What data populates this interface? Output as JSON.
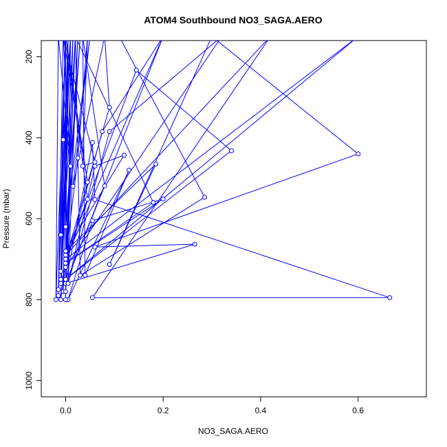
{
  "chart_data": {
    "type": "line",
    "title": "ATOM4 Southbound NO3_SAGA.AERO",
    "xlabel": "NO3_SAGA.AERO",
    "ylabel": "Pressure (mbar)",
    "xlim": [
      -0.05,
      0.74
    ],
    "ylim": [
      160,
      1040
    ],
    "y_reversed": true,
    "x_ticks": [
      0.0,
      0.2,
      0.4,
      0.6
    ],
    "x_tick_labels": [
      "0.0",
      "0.2",
      "0.4",
      "0.6"
    ],
    "y_ticks": [
      200,
      400,
      600,
      800,
      1000
    ],
    "y_tick_labels": [
      "200",
      "400",
      "600",
      "800",
      "1000"
    ],
    "marker": "open-circle",
    "series": [
      {
        "color": "#0000ff",
        "points": [
          {
            "x": 0.01,
            "y": 150
          },
          {
            "x": -0.01,
            "y": 760
          },
          {
            "x": 0.0,
            "y": 720
          },
          {
            "x": 0.02,
            "y": 150
          },
          {
            "x": 0.0,
            "y": 700
          },
          {
            "x": 0.005,
            "y": 150
          },
          {
            "x": -0.005,
            "y": 780
          },
          {
            "x": 0.03,
            "y": 150
          },
          {
            "x": 0.0,
            "y": 620
          },
          {
            "x": 0.05,
            "y": 150
          },
          {
            "x": 0.015,
            "y": 520
          },
          {
            "x": 0.08,
            "y": 150
          },
          {
            "x": 0.09,
            "y": 325
          },
          {
            "x": 0.0,
            "y": 700
          },
          {
            "x": 0.145,
            "y": 233
          },
          {
            "x": 0.34,
            "y": 432
          },
          {
            "x": 0.0,
            "y": 750
          },
          {
            "x": 0.6,
            "y": 150
          },
          {
            "x": 0.0,
            "y": 700
          },
          {
            "x": 0.2,
            "y": 150
          },
          {
            "x": 0.075,
            "y": 385
          },
          {
            "x": 0.0,
            "y": 720
          },
          {
            "x": 0.32,
            "y": 150
          },
          {
            "x": 0.09,
            "y": 385
          },
          {
            "x": 0.005,
            "y": 760
          },
          {
            "x": 0.06,
            "y": 470
          },
          {
            "x": 0.12,
            "y": 443
          },
          {
            "x": 0.0,
            "y": 680
          },
          {
            "x": 0.185,
            "y": 465
          },
          {
            "x": 0.09,
            "y": 713
          },
          {
            "x": 0.3,
            "y": 150
          },
          {
            "x": 0.6,
            "y": 440
          },
          {
            "x": 0.06,
            "y": 670
          },
          {
            "x": 0.265,
            "y": 663
          },
          {
            "x": 0.0,
            "y": 760
          },
          {
            "x": 0.2,
            "y": 150
          },
          {
            "x": 0.11,
            "y": 150
          },
          {
            "x": 0.285,
            "y": 547
          },
          {
            "x": 0.03,
            "y": 740
          },
          {
            "x": 0.02,
            "y": 150
          },
          {
            "x": 0.18,
            "y": 560
          },
          {
            "x": 0.0,
            "y": 710
          },
          {
            "x": 0.2,
            "y": 551
          },
          {
            "x": 0.055,
            "y": 605
          },
          {
            "x": 0.005,
            "y": 800
          },
          {
            "x": 0.13,
            "y": 480
          },
          {
            "x": 0.04,
            "y": 740
          },
          {
            "x": 0.035,
            "y": 150
          },
          {
            "x": 0.08,
            "y": 519
          },
          {
            "x": 0.0,
            "y": 760
          },
          {
            "x": 0.055,
            "y": 412
          },
          {
            "x": 0.06,
            "y": 553
          },
          {
            "x": 0.665,
            "y": 795
          },
          {
            "x": 0.055,
            "y": 795
          },
          {
            "x": 0.42,
            "y": 150
          },
          {
            "x": 0.0,
            "y": 690
          },
          {
            "x": 0.045,
            "y": 552
          },
          {
            "x": 0.0,
            "y": 150
          },
          {
            "x": 0.045,
            "y": 510
          },
          {
            "x": -0.005,
            "y": 150
          },
          {
            "x": 0.06,
            "y": 460
          },
          {
            "x": 0.035,
            "y": 470
          },
          {
            "x": 0.045,
            "y": 150
          },
          {
            "x": 0.025,
            "y": 450
          },
          {
            "x": -0.01,
            "y": 800
          },
          {
            "x": 0.01,
            "y": 150
          },
          {
            "x": -0.005,
            "y": 405
          },
          {
            "x": -0.01,
            "y": 640
          },
          {
            "x": 0.0,
            "y": 150
          },
          {
            "x": -0.02,
            "y": 800
          },
          {
            "x": -0.015,
            "y": 150
          },
          {
            "x": 0.01,
            "y": 470
          },
          {
            "x": -0.005,
            "y": 150
          },
          {
            "x": -0.015,
            "y": 790
          },
          {
            "x": 0.005,
            "y": 150
          },
          {
            "x": -0.01,
            "y": 730
          },
          {
            "x": 0.01,
            "y": 150
          },
          {
            "x": -0.015,
            "y": 775
          },
          {
            "x": 0.0,
            "y": 150
          },
          {
            "x": 0.0,
            "y": 800
          },
          {
            "x": 0.015,
            "y": 150
          },
          {
            "x": -0.01,
            "y": 750
          },
          {
            "x": 0.02,
            "y": 150
          },
          {
            "x": 0.0,
            "y": 780
          },
          {
            "x": 0.025,
            "y": 150
          },
          {
            "x": 0.005,
            "y": 760
          },
          {
            "x": 0.01,
            "y": 150
          }
        ]
      }
    ],
    "grid": false,
    "legend": "none"
  }
}
